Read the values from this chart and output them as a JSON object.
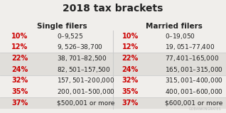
{
  "title": "2018 tax brackets",
  "col_headers": [
    "Single filers",
    "Married filers"
  ],
  "rows": [
    {
      "rate": "10%",
      "single": "$0–$9,525",
      "married": "$0–$19,050",
      "group": 0
    },
    {
      "rate": "12%",
      "single": "$9,526–$38,700",
      "married": "$19,051–$77,400",
      "group": 0
    },
    {
      "rate": "22%",
      "single": "$38,701–$82,500",
      "married": "$77,401–$165,000",
      "group": 1
    },
    {
      "rate": "24%",
      "single": "$82,501–$157,500",
      "married": "$165,001–$315,000",
      "group": 1
    },
    {
      "rate": "32%",
      "single": "$157,501–$200,000",
      "married": "$315,001–$400,000",
      "group": 2
    },
    {
      "rate": "35%",
      "single": "$200,001–$500,000",
      "married": "$400,001–$600,000",
      "group": 2
    },
    {
      "rate": "37%",
      "single": "$500,001 or more",
      "married": "$600,001 or more",
      "group": 3
    }
  ],
  "rate_color": "#cc0000",
  "text_color": "#222222",
  "header_color": "#222222",
  "bg_color": "#f0eeeb",
  "divider_color": "#cccccc",
  "title_fontsize": 10,
  "header_fontsize": 7.5,
  "cell_fontsize": 6.5,
  "rate_fontsize": 7.0,
  "group_bg_colors": [
    "#f0eeeb",
    "#e0deda",
    "#f0eeeb",
    "#e0deda"
  ],
  "watermark": "GOBANKINGRATES"
}
